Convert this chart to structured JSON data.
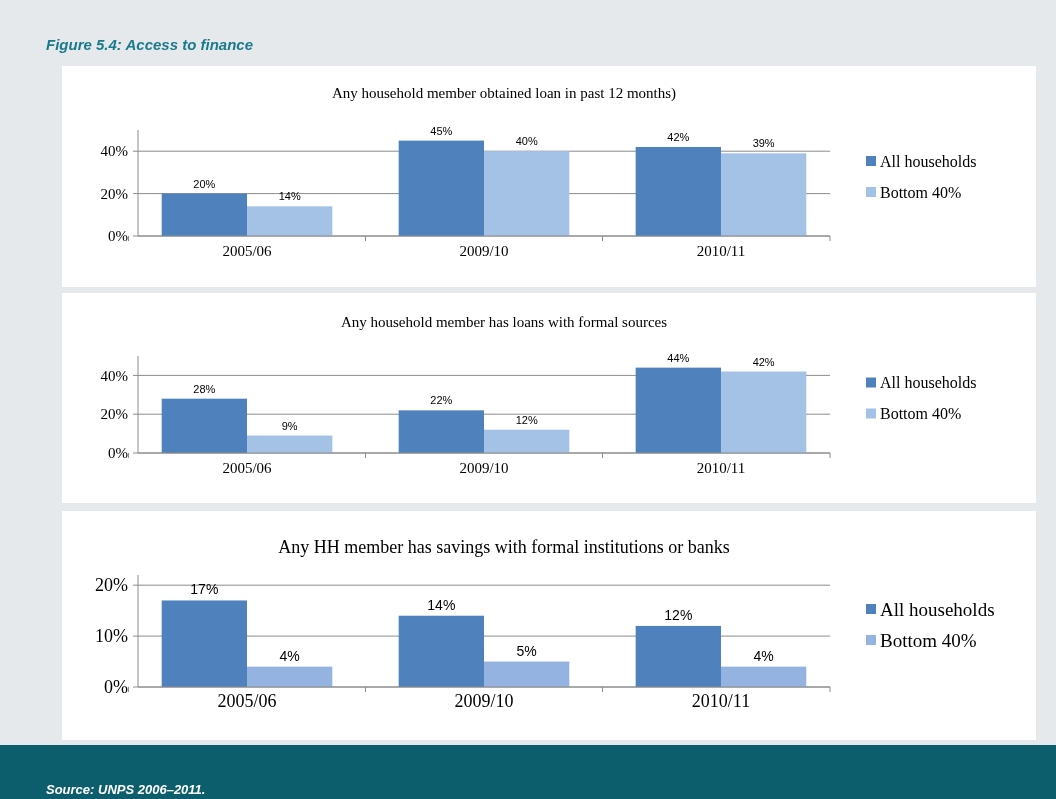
{
  "chart_data": [
    {
      "type": "bar",
      "title": "Any household member obtained loan in past 12 months)",
      "annotations": [
        "Figure 5.4: Access to finance"
      ],
      "categories": [
        "2005/06",
        "2009/10",
        "2010/11"
      ],
      "series": [
        {
          "name": "All households",
          "color": "#4f81bd",
          "values": [
            20,
            45,
            42
          ],
          "value_labels": [
            "20%",
            "45%",
            "42%"
          ]
        },
        {
          "name": "Bottom 40%",
          "color": "#a4c2e6",
          "values": [
            14,
            40,
            39
          ],
          "value_labels": [
            "14%",
            "40%",
            "39%"
          ]
        }
      ],
      "ylim": [
        0,
        50
      ],
      "yticks": [
        {
          "value": 0,
          "label": "0%"
        },
        {
          "value": 20,
          "label": "20%"
        },
        {
          "value": 40,
          "label": "40%"
        }
      ],
      "grid": "y",
      "legend": "right"
    },
    {
      "type": "bar",
      "title": "Any household member has loans with formal sources",
      "categories": [
        "2005/06",
        "2009/10",
        "2010/11"
      ],
      "series": [
        {
          "name": "All households",
          "color": "#4f81bd",
          "values": [
            28,
            22,
            44
          ],
          "value_labels": [
            "28%",
            "22%",
            "44%"
          ]
        },
        {
          "name": "Bottom 40%",
          "color": "#a4c2e6",
          "values": [
            9,
            12,
            42
          ],
          "value_labels": [
            "9%",
            "12%",
            "42%"
          ]
        }
      ],
      "ylim": [
        0,
        50
      ],
      "yticks": [
        {
          "value": 0,
          "label": "0%"
        },
        {
          "value": 20,
          "label": "20%"
        },
        {
          "value": 40,
          "label": "40%"
        }
      ],
      "grid": "y",
      "legend": "right"
    },
    {
      "type": "bar",
      "title": "Any HH member has savings with formal institutions or banks",
      "annotations": [
        "Source: UNPS 2006–2011."
      ],
      "categories": [
        "2005/06",
        "2009/10",
        "2010/11"
      ],
      "series": [
        {
          "name": "All households",
          "color": "#4f81bd",
          "values": [
            17,
            14,
            12
          ],
          "value_labels": [
            "17%",
            "14%",
            "12%"
          ]
        },
        {
          "name": "Bottom 40%",
          "color": "#95b3e0",
          "values": [
            4,
            5,
            4
          ],
          "value_labels": [
            "4%",
            "5%",
            "4%"
          ]
        }
      ],
      "ylim": [
        0,
        22
      ],
      "yticks": [
        {
          "value": 0,
          "label": "0%"
        },
        {
          "value": 10,
          "label": "10%"
        },
        {
          "value": 20,
          "label": "20%"
        }
      ],
      "grid": "y",
      "legend": "right"
    }
  ]
}
